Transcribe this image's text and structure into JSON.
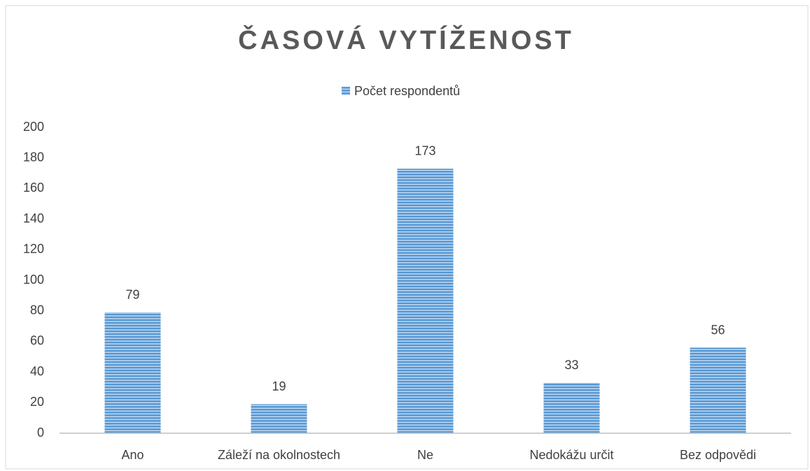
{
  "chart_data": {
    "type": "bar",
    "title": "ČASOVÁ VYTÍŽENOST",
    "categories": [
      "Ano",
      "Záleží na okolnostech",
      "Ne",
      "Nedokážu určit",
      "Bez odpovědi"
    ],
    "series": [
      {
        "name": "Počet respondentů",
        "color": "#5b9bd5",
        "values": [
          79,
          19,
          173,
          33,
          56
        ]
      }
    ],
    "ylim": [
      0,
      200
    ],
    "yticks": [
      0,
      20,
      40,
      60,
      80,
      100,
      120,
      140,
      160,
      180,
      200
    ],
    "grid": false,
    "legend": "top"
  }
}
